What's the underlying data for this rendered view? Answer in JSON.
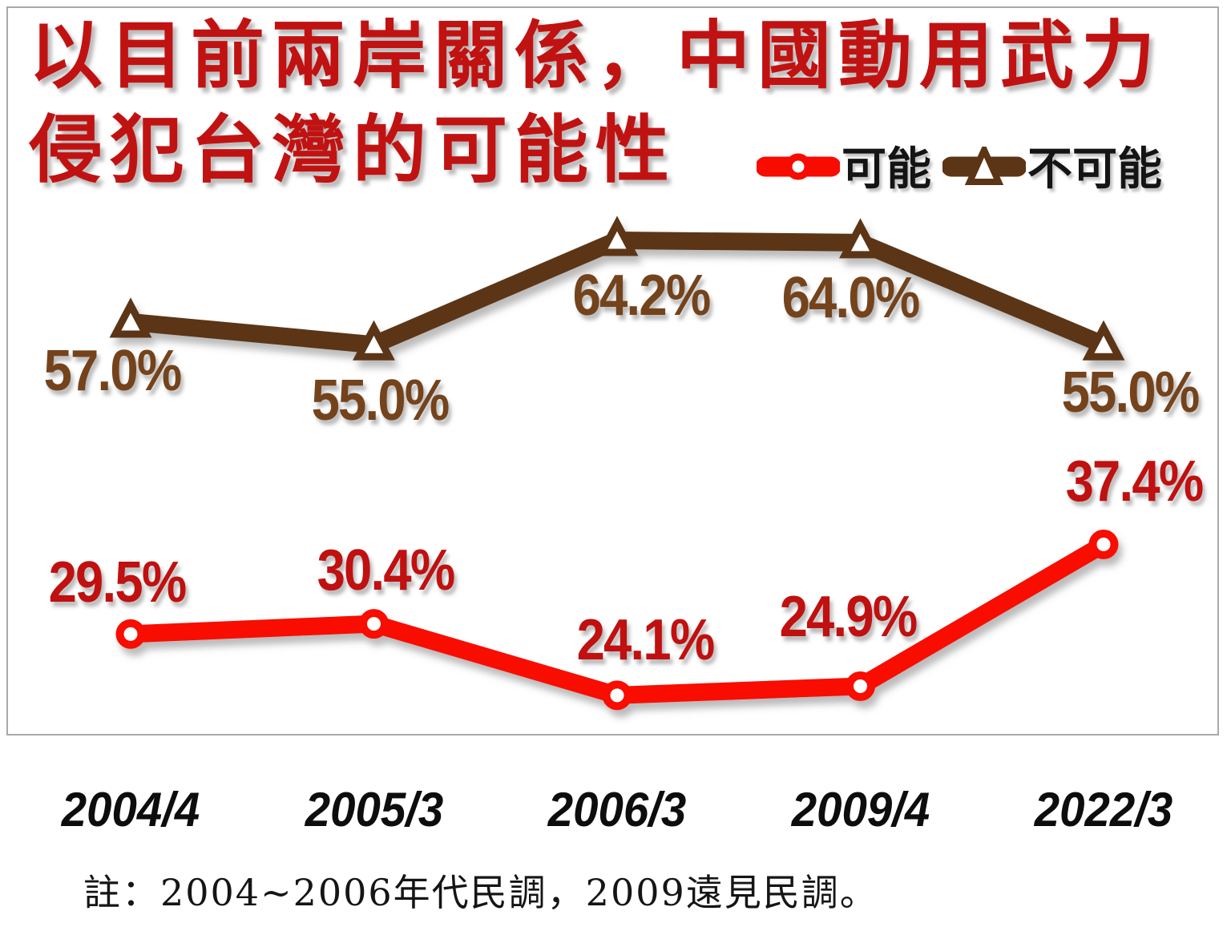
{
  "page": {
    "background": "#ffffff"
  },
  "title": {
    "line1": "以目前兩岸關係，中國動用武力",
    "line2": "侵犯台灣的可能性",
    "color": "#C11212"
  },
  "legend": {
    "items": [
      {
        "label": "可能",
        "marker": "circle-icon",
        "color": "#F80B00"
      },
      {
        "label": "不可能",
        "marker": "triangle-icon",
        "color": "#5C3517"
      }
    ]
  },
  "footnote": {
    "text": "註：2004~2006年代民調，2009遠見民調。"
  },
  "chart_data": {
    "type": "line",
    "title": "以目前兩岸關係，中國動用武力侵犯台灣的可能性",
    "categories": [
      "2004/4",
      "2005/3",
      "2006/3",
      "2009/4",
      "2022/3"
    ],
    "series": [
      {
        "name": "可能",
        "values": [
          29.5,
          30.4,
          24.1,
          24.9,
          37.4
        ],
        "line_color": "#F80B00",
        "label_color": "#C01010",
        "marker": "circle"
      },
      {
        "name": "不可能",
        "values": [
          57.0,
          55.0,
          64.2,
          64.0,
          55.0
        ],
        "line_color": "#5C3517",
        "label_color": "#74431C",
        "marker": "triangle"
      }
    ],
    "value_suffix": "%",
    "data_label_format": "one_decimal",
    "xlabel": "",
    "ylabel": "",
    "grid": false,
    "axes_visible": false,
    "legend_position": "top-right",
    "note": "註：2004~2006年代民調，2009遠見民調。"
  }
}
